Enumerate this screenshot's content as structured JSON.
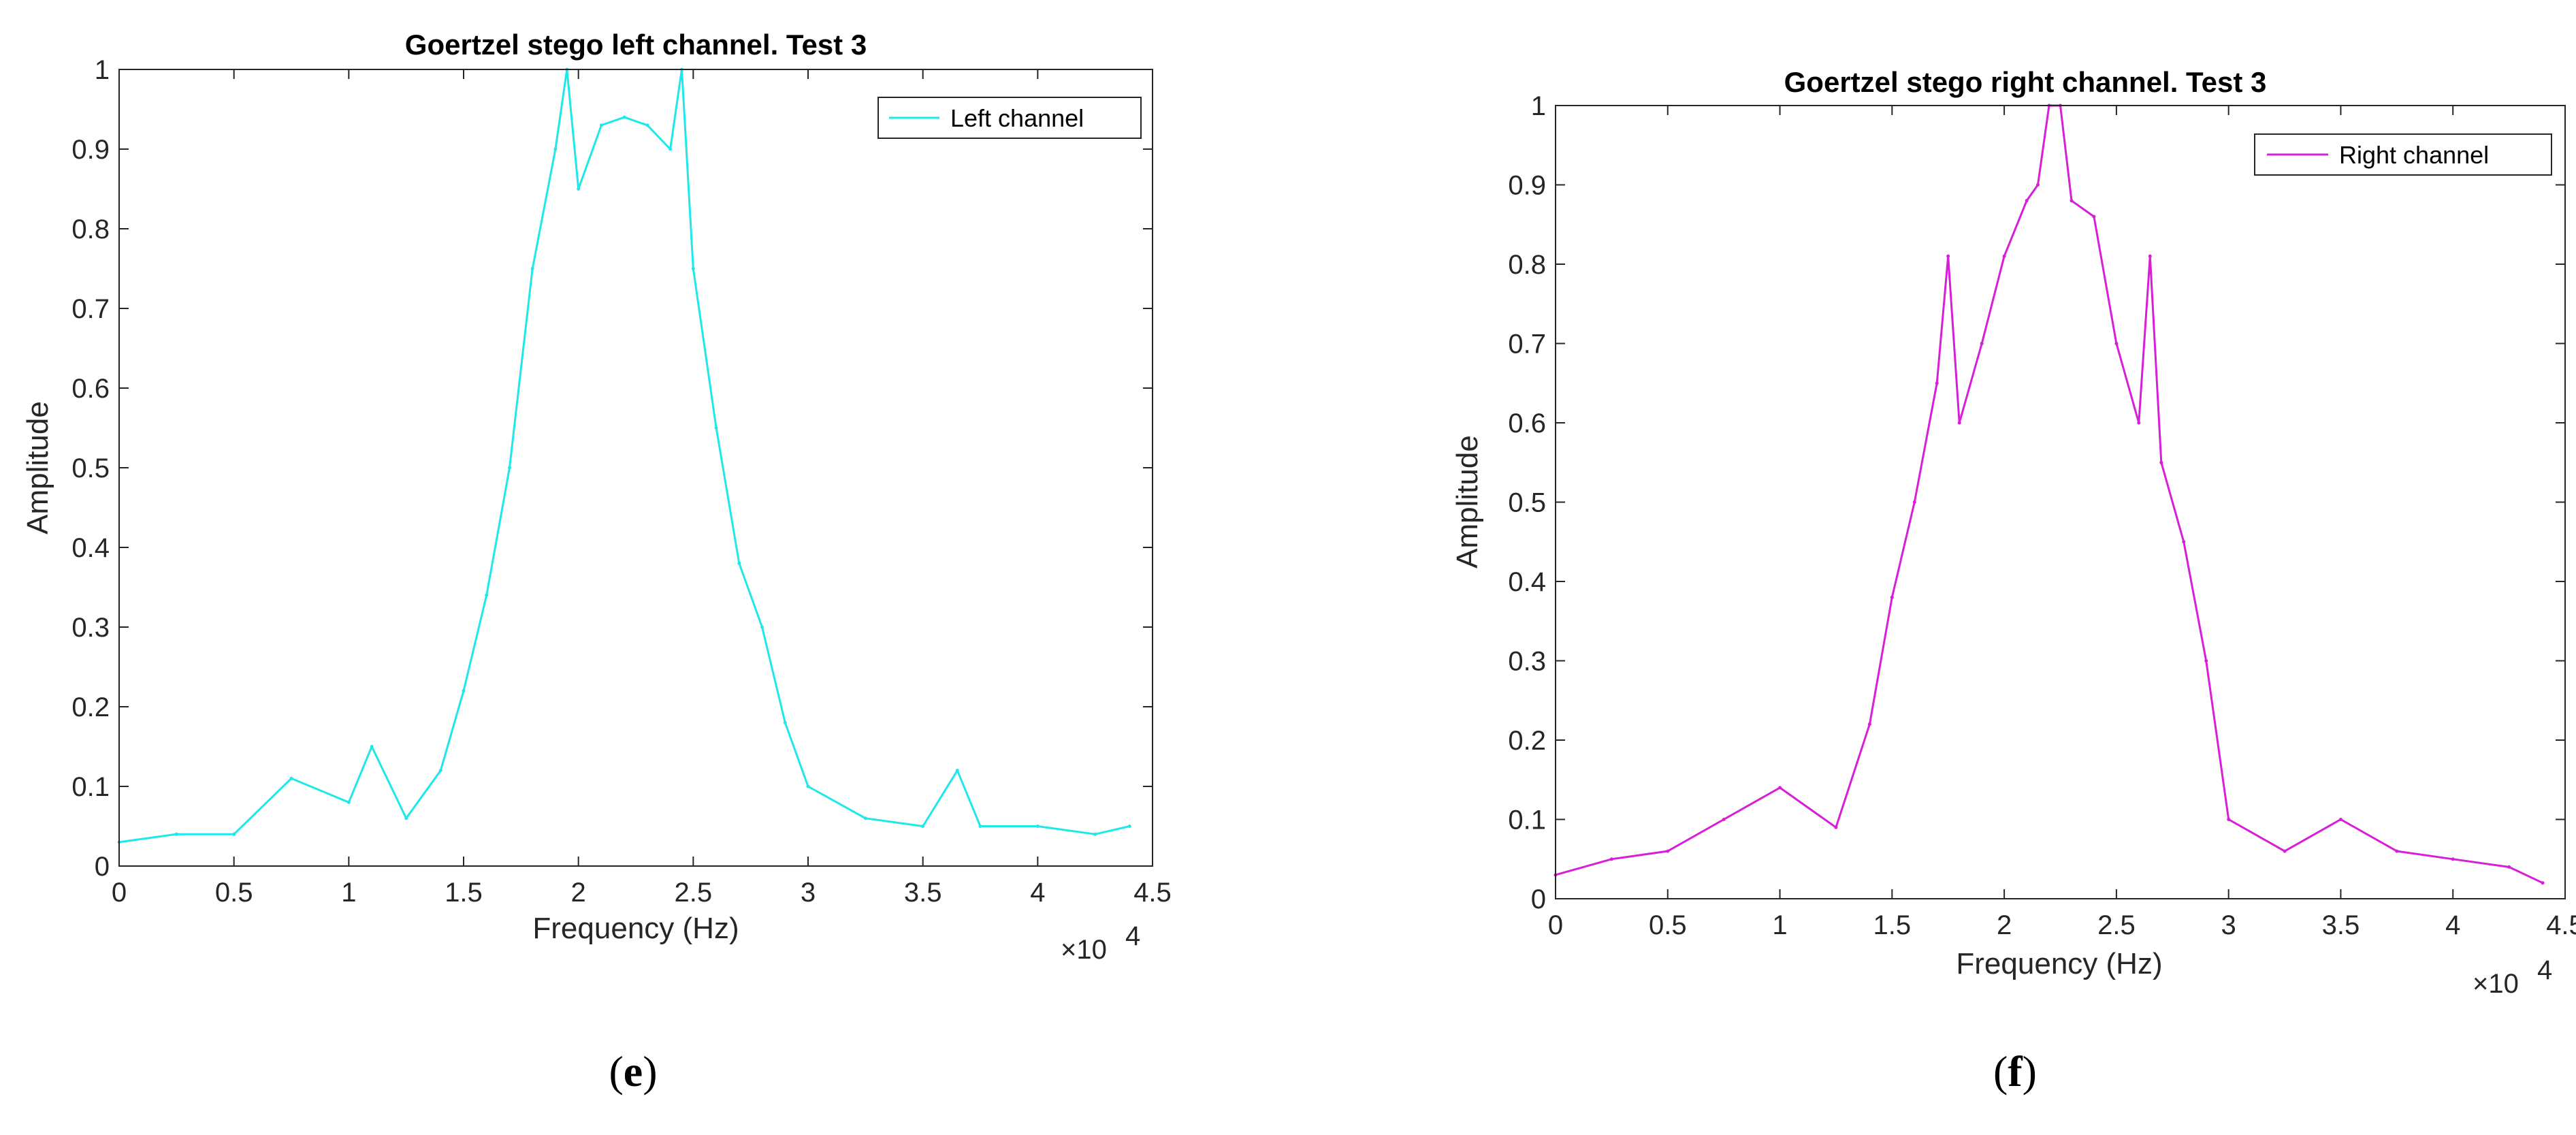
{
  "figures": [
    {
      "caption_open": "(",
      "caption_letter": "e",
      "caption_close": ")"
    },
    {
      "caption_open": "(",
      "caption_letter": "f",
      "caption_close": ")"
    }
  ],
  "chart_data": [
    {
      "type": "line",
      "title": "Goertzel stego left channel. Test 3",
      "xlabel": "Frequency (Hz)",
      "ylabel": "Amplitude",
      "x_exponent_label": "×10",
      "x_exponent_power": "4",
      "xlim": [
        0,
        4.5
      ],
      "ylim": [
        0,
        1
      ],
      "x_unit_scale": 10000,
      "xticks": [
        "0",
        "0.5",
        "1",
        "1.5",
        "2",
        "2.5",
        "3",
        "3.5",
        "4",
        "4.5"
      ],
      "yticks": [
        "0",
        "0.1",
        "0.2",
        "0.3",
        "0.4",
        "0.5",
        "0.6",
        "0.7",
        "0.8",
        "0.9",
        "1"
      ],
      "grid": false,
      "legend_position": "top-right",
      "color": "#1EE8EA",
      "series": [
        {
          "name": "Left channel",
          "x": [
            0,
            0.25,
            0.5,
            0.75,
            1.0,
            1.1,
            1.25,
            1.4,
            1.5,
            1.6,
            1.7,
            1.8,
            1.9,
            1.95,
            2.0,
            2.1,
            2.2,
            2.3,
            2.4,
            2.45,
            2.5,
            2.6,
            2.7,
            2.8,
            2.9,
            3.0,
            3.25,
            3.5,
            3.65,
            3.75,
            4.0,
            4.25,
            4.4
          ],
          "values": [
            0.03,
            0.04,
            0.04,
            0.11,
            0.08,
            0.15,
            0.06,
            0.12,
            0.22,
            0.34,
            0.5,
            0.75,
            0.9,
            1.0,
            0.85,
            0.93,
            0.94,
            0.93,
            0.9,
            1.0,
            0.75,
            0.55,
            0.38,
            0.3,
            0.18,
            0.1,
            0.06,
            0.05,
            0.12,
            0.05,
            0.05,
            0.04,
            0.05
          ]
        }
      ]
    },
    {
      "type": "line",
      "title": "Goertzel stego right channel. Test 3",
      "xlabel": "Frequency (Hz)",
      "ylabel": "Amplitude",
      "x_exponent_label": "×10",
      "x_exponent_power": "4",
      "xlim": [
        0,
        4.5
      ],
      "ylim": [
        0,
        1
      ],
      "x_unit_scale": 10000,
      "xticks": [
        "0",
        "0.5",
        "1",
        "1.5",
        "2",
        "2.5",
        "3",
        "3.5",
        "4",
        "4.5"
      ],
      "yticks": [
        "0",
        "0.1",
        "0.2",
        "0.3",
        "0.4",
        "0.5",
        "0.6",
        "0.7",
        "0.8",
        "0.9",
        "1"
      ],
      "grid": false,
      "legend_position": "top-right",
      "color": "#D81ED8",
      "series": [
        {
          "name": "Right channel",
          "x": [
            0,
            0.25,
            0.5,
            0.75,
            1.0,
            1.25,
            1.4,
            1.5,
            1.6,
            1.7,
            1.75,
            1.8,
            1.9,
            2.0,
            2.1,
            2.15,
            2.2,
            2.25,
            2.3,
            2.4,
            2.5,
            2.6,
            2.65,
            2.7,
            2.8,
            2.9,
            3.0,
            3.25,
            3.5,
            3.75,
            4.0,
            4.25,
            4.4
          ],
          "values": [
            0.03,
            0.05,
            0.06,
            0.1,
            0.14,
            0.09,
            0.22,
            0.38,
            0.5,
            0.65,
            0.81,
            0.6,
            0.7,
            0.81,
            0.88,
            0.9,
            1.0,
            1.0,
            0.88,
            0.86,
            0.7,
            0.6,
            0.81,
            0.55,
            0.45,
            0.3,
            0.1,
            0.06,
            0.1,
            0.06,
            0.05,
            0.04,
            0.02
          ]
        }
      ]
    }
  ]
}
